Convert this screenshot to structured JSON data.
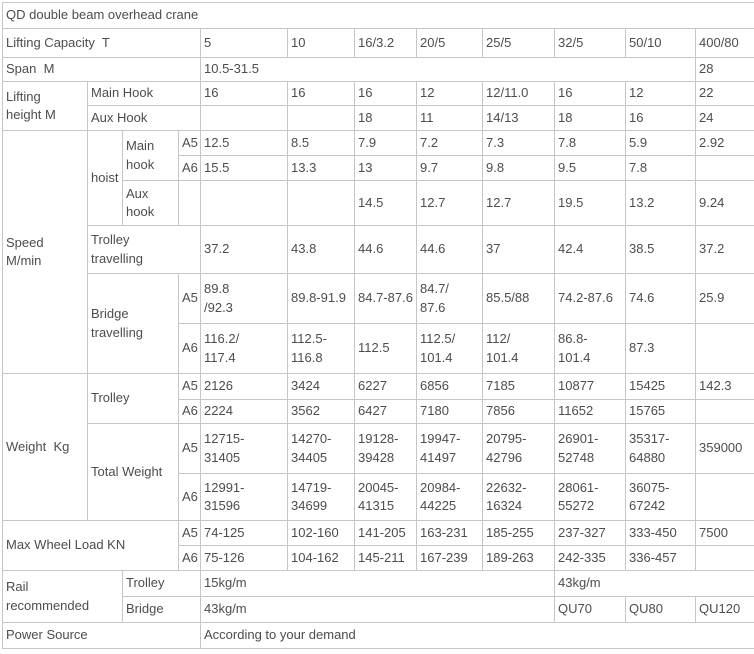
{
  "title": "QD double beam overhead crane",
  "colors": {
    "border": "#c6c6c6",
    "text": "#4d4d4d",
    "background": "#ffffff"
  },
  "table": {
    "rows": [
      [
        {
          "t": "Lifting Capacity  T",
          "cs": 4,
          "n": "row-label-lifting-capacity"
        },
        "5",
        "10",
        "16/3.2",
        "20/5",
        "25/5",
        "32/5",
        "50/10",
        "400/80"
      ],
      [
        {
          "t": "Span  M",
          "cs": 4,
          "n": "row-label-span"
        },
        {
          "t": "10.5-31.5",
          "cs": 7
        },
        "28"
      ],
      [
        {
          "t": "Lifting\nheight M",
          "rs": 2,
          "n": "section-label-lifting-height"
        },
        {
          "t": "Main Hook",
          "cs": 3,
          "n": "row-label-main-hook"
        },
        "16",
        "16",
        "16",
        "12",
        "12/11.0",
        "16",
        "12",
        "22"
      ],
      [
        {
          "t": "Aux Hook",
          "cs": 3,
          "n": "row-label-aux-hook"
        },
        "",
        "",
        "18",
        "11",
        "14/13",
        "18",
        "16",
        "24"
      ],
      [
        {
          "t": "Speed\nM/min",
          "rs": 6,
          "n": "section-label-speed"
        },
        {
          "t": "hoist",
          "rs": 3,
          "n": "row-label-hoist"
        },
        {
          "t": "Main\nhook",
          "rs": 2,
          "n": "row-label-main-hook-speed"
        },
        {
          "t": "A5",
          "n": "grade-label"
        },
        "12.5",
        "8.5",
        "7.9",
        "7.2",
        "7.3",
        "7.8",
        "5.9",
        "2.92"
      ],
      [
        {
          "t": "A6",
          "n": "grade-label"
        },
        "15.5",
        "13.3",
        "13",
        "9.7",
        "9.8",
        "9.5",
        "7.8",
        ""
      ],
      [
        {
          "t": "Aux\nhook",
          "n": "row-label-aux-hook-speed"
        },
        "",
        "",
        "",
        "14.5",
        "12.7",
        "12.7",
        "19.5",
        "13.2",
        "9.24"
      ],
      [
        {
          "t": "Trolley\ntravelling",
          "cs": 3,
          "n": "row-label-trolley-travelling"
        },
        "37.2",
        "43.8",
        "44.6",
        "44.6",
        "37",
        "42.4",
        "38.5",
        "37.2"
      ],
      [
        {
          "t": "Bridge\ntravelling",
          "cs": 2,
          "rs": 2,
          "n": "row-label-bridge-travelling"
        },
        {
          "t": "A5",
          "n": "grade-label"
        },
        "89.8\n/92.3",
        "89.8-91.9",
        "84.7-87.6",
        "84.7/\n87.6",
        "85.5/88",
        "74.2-87.6",
        "74.6",
        "25.9"
      ],
      [
        {
          "t": "A6",
          "n": "grade-label"
        },
        "116.2/\n117.4",
        "112.5-\n116.8",
        "112.5",
        "112.5/\n101.4",
        "112/\n101.4",
        "86.8-\n101.4",
        "87.3",
        ""
      ],
      [
        {
          "t": "Weight  Kg",
          "rs": 4,
          "n": "section-label-weight"
        },
        {
          "t": "Trolley",
          "cs": 2,
          "rs": 2,
          "n": "row-label-trolley-weight"
        },
        {
          "t": "A5",
          "n": "grade-label"
        },
        "2126",
        "3424",
        "6227",
        "6856",
        "7185",
        "10877",
        "15425",
        "142.3"
      ],
      [
        {
          "t": "A6",
          "n": "grade-label"
        },
        "2224",
        "3562",
        "6427",
        "7180",
        "7856",
        "11652",
        "15765",
        ""
      ],
      [
        {
          "t": "Total Weight",
          "cs": 2,
          "rs": 2,
          "n": "row-label-total-weight"
        },
        {
          "t": "A5",
          "n": "grade-label"
        },
        "12715-\n31405",
        "14270-\n34405",
        "19128-\n39428",
        "19947-\n41497",
        "20795-\n42796",
        "26901-\n52748",
        "35317-\n64880",
        "359000"
      ],
      [
        {
          "t": "A6",
          "n": "grade-label"
        },
        "12991-\n31596",
        "14719-\n34699",
        "20045-\n41315",
        "20984-\n44225",
        "22632-\n16324",
        "28061-\n55272",
        "36075-\n67242",
        ""
      ],
      [
        {
          "t": "Max Wheel Load KN",
          "cs": 3,
          "rs": 2,
          "n": "row-label-max-wheel-load"
        },
        {
          "t": "A5",
          "n": "grade-label"
        },
        "74-125",
        "102-160",
        "141-205",
        "163-231",
        "185-255",
        "237-327",
        "333-450",
        "7500"
      ],
      [
        {
          "t": "A6",
          "n": "grade-label"
        },
        "75-126",
        "104-162",
        "145-211",
        "167-239",
        "189-263",
        "242-335",
        "336-457",
        ""
      ],
      [
        {
          "t": "Rail\nrecommended",
          "cs": 2,
          "rs": 2,
          "n": "row-label-rail-recommended"
        },
        {
          "t": "Trolley",
          "cs": 2,
          "n": "row-label-rail-trolley"
        },
        {
          "t": "15kg/m",
          "cs": 5
        },
        {
          "t": "43kg/m",
          "cs": 3
        }
      ],
      [
        {
          "t": "Bridge",
          "cs": 2,
          "n": "row-label-rail-bridge"
        },
        {
          "t": "43kg/m",
          "cs": 5
        },
        "QU70",
        "QU80",
        "QU120"
      ],
      [
        {
          "t": "Power Source",
          "cs": 4,
          "n": "row-label-power-source"
        },
        {
          "t": "According to your demand",
          "cs": 8
        }
      ]
    ]
  }
}
